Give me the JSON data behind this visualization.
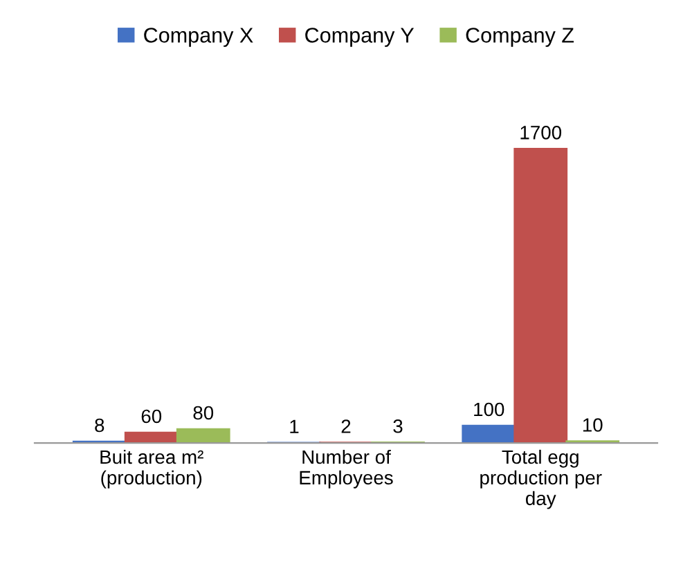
{
  "chart_data": {
    "type": "bar",
    "categories": [
      "Buit area m²\n(production)",
      "Number of\nEmployees",
      "Total egg\nproduction per\nday"
    ],
    "series": [
      {
        "name": "Company X",
        "color": "#4472c4",
        "values": [
          8,
          1,
          100
        ]
      },
      {
        "name": "Company Y",
        "color": "#c0504d",
        "values": [
          60,
          2,
          1700
        ]
      },
      {
        "name": "Company Z",
        "color": "#9bbb59",
        "values": [
          80,
          3,
          10
        ]
      }
    ],
    "data_labels": true,
    "legend": "top",
    "grid": false
  }
}
